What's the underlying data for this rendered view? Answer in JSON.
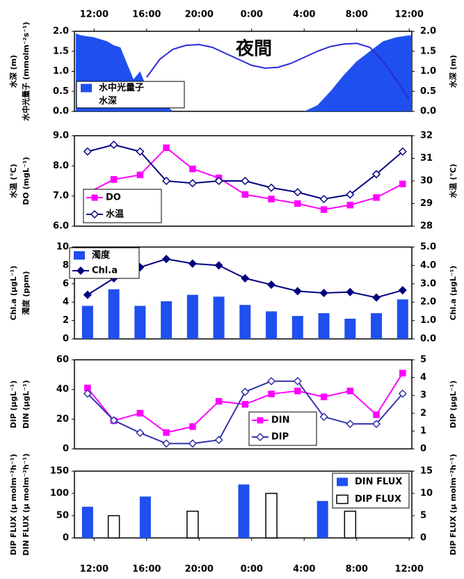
{
  "chart_data": [
    {
      "type": "line",
      "annotation": "夜間",
      "ylabels": [
        "水深 (m)",
        "水中光量子 (mmolm⁻²s⁻¹)"
      ],
      "y2label": "水深 (m)",
      "xlim": [
        10.5,
        36.2
      ],
      "xaxis_position": "top",
      "xticks": [
        {
          "value": 12,
          "label": "12:00"
        },
        {
          "value": 16,
          "label": "16:00"
        },
        {
          "value": 20,
          "label": "20:00"
        },
        {
          "value": 24,
          "label": "0:00"
        },
        {
          "value": 28,
          "label": "4:00"
        },
        {
          "value": 32,
          "label": "8:00"
        },
        {
          "value": 36,
          "label": "12:00"
        }
      ],
      "ylim": [
        0,
        2
      ],
      "yticks": [
        {
          "value": 0,
          "label": "0.0"
        },
        0.5,
        {
          "value": 1,
          "label": "1.0"
        },
        1.5,
        {
          "value": 2,
          "label": "2.0"
        }
      ],
      "y2lim": [
        0,
        2
      ],
      "y2ticks": [
        {
          "value": 0,
          "label": "0.0"
        },
        0.5,
        {
          "value": 1,
          "label": "1.0"
        },
        1.5,
        {
          "value": 2,
          "label": "2.0"
        }
      ],
      "series": [
        {
          "name": "水中光量子",
          "type": "area",
          "color": "#1f4fef",
          "x": [
            10.6,
            11,
            12,
            12.5,
            13,
            13.5,
            14,
            14.5,
            15,
            15.5,
            16,
            17,
            17.5,
            18,
            28,
            29,
            30,
            31,
            32,
            33,
            34,
            35,
            36,
            36.2
          ],
          "values": [
            1.95,
            1.9,
            1.85,
            1.8,
            1.75,
            1.65,
            1.6,
            1.2,
            0.8,
            1.0,
            0.6,
            0.3,
            0.15,
            0,
            0,
            0.15,
            0.5,
            0.9,
            1.25,
            1.5,
            1.75,
            1.85,
            1.9,
            1.9
          ]
        },
        {
          "name": "水深",
          "type": "line",
          "axis": "y2",
          "color": "#2a2adb",
          "marker": "none",
          "x": [
            16,
            17,
            18,
            19,
            20,
            21,
            22,
            23,
            24,
            25,
            26,
            27,
            28,
            29,
            30,
            31,
            32,
            33,
            34,
            35,
            36
          ],
          "values": [
            0.85,
            1.3,
            1.55,
            1.65,
            1.67,
            1.6,
            1.45,
            1.3,
            1.15,
            1.08,
            1.1,
            1.2,
            1.35,
            1.5,
            1.62,
            1.68,
            1.7,
            1.6,
            1.25,
            0.8,
            0.3
          ]
        }
      ]
    },
    {
      "type": "line",
      "ylabels": [
        "水温 (℃)",
        "DO (mgL⁻¹)"
      ],
      "y2label": "水温 (℃)",
      "xlim": [
        10.5,
        36.2
      ],
      "ylim": [
        6,
        9
      ],
      "yticks": [
        {
          "value": 6,
          "label": "6.0"
        },
        {
          "value": 7,
          "label": "7.0"
        },
        {
          "value": 8,
          "label": "8.0"
        },
        {
          "value": 9,
          "label": "9.0"
        }
      ],
      "y2lim": [
        28,
        32
      ],
      "y2ticks": [
        28,
        29,
        30,
        31,
        32
      ],
      "series": [
        {
          "name": "DO",
          "type": "line",
          "color": "#ff00ff",
          "marker": "square",
          "marker_filled": true,
          "x": [
            11.5,
            13.5,
            15.5,
            17.5,
            19.5,
            21.5,
            23.5,
            25.5,
            27.5,
            29.5,
            31.5,
            33.5,
            35.5
          ],
          "values": [
            7.1,
            7.55,
            7.7,
            8.6,
            7.9,
            7.6,
            7.05,
            6.9,
            6.75,
            6.55,
            6.7,
            6.95,
            7.4
          ]
        },
        {
          "name": "水温",
          "type": "line",
          "axis": "y2",
          "color": "#000080",
          "marker": "diamond",
          "marker_filled": false,
          "x": [
            11.5,
            13.5,
            15.5,
            17.5,
            19.5,
            21.5,
            23.5,
            25.5,
            27.5,
            29.5,
            31.5,
            33.5,
            35.5
          ],
          "values": [
            31.3,
            31.6,
            31.3,
            30.0,
            29.9,
            30.0,
            30.0,
            29.7,
            29.5,
            29.2,
            29.4,
            30.3,
            31.3
          ]
        }
      ]
    },
    {
      "type": "bar",
      "ylabels": [
        "Chl.a (μgL⁻¹)",
        "濁度 (ppm)"
      ],
      "y2label": "Chl.a (μgL⁻¹)",
      "xlim": [
        10.5,
        36.2
      ],
      "ylim": [
        0,
        10
      ],
      "yticks": [
        0,
        2,
        4,
        6,
        8,
        10
      ],
      "y2lim": [
        0,
        5
      ],
      "y2ticks": [
        {
          "value": 0,
          "label": "0.0"
        },
        {
          "value": 1,
          "label": "1.0"
        },
        {
          "value": 2,
          "label": "2.0"
        },
        {
          "value": 3,
          "label": "3.0"
        },
        {
          "value": 4,
          "label": "4.0"
        },
        {
          "value": 5,
          "label": "5.0"
        }
      ],
      "series": [
        {
          "name": "濁度",
          "type": "bar",
          "color": "#1f4fef",
          "x": [
            11.5,
            13.5,
            15.5,
            17.5,
            19.5,
            21.5,
            23.5,
            25.5,
            27.5,
            29.5,
            31.5,
            33.5,
            35.5
          ],
          "values": [
            3.6,
            5.4,
            3.6,
            4.1,
            4.8,
            4.6,
            3.7,
            3.0,
            2.5,
            2.8,
            2.2,
            2.8,
            4.3
          ]
        },
        {
          "name": "Chl.a",
          "type": "line",
          "axis": "y2",
          "color": "#000080",
          "marker": "diamond",
          "marker_filled": true,
          "x": [
            11.5,
            13.5,
            15.5,
            17.5,
            19.5,
            21.5,
            23.5,
            25.5,
            27.5,
            29.5,
            31.5,
            33.5,
            35.5
          ],
          "values": [
            2.4,
            3.3,
            3.9,
            4.35,
            4.1,
            4.0,
            3.3,
            2.95,
            2.6,
            2.5,
            2.55,
            2.25,
            2.65
          ]
        }
      ]
    },
    {
      "type": "line",
      "ylabels": [
        "DIP (μgL⁻¹)",
        "DIN (μgL⁻¹)"
      ],
      "y2label": "DIP (μgL⁻¹)",
      "xlim": [
        10.5,
        36.2
      ],
      "ylim": [
        0,
        60
      ],
      "yticks": [
        0,
        20,
        40,
        60
      ],
      "y2lim": [
        0,
        5
      ],
      "y2ticks": [
        0,
        1,
        2,
        3,
        4,
        5
      ],
      "series": [
        {
          "name": "DIN",
          "type": "line",
          "color": "#ff00ff",
          "marker": "square",
          "marker_filled": true,
          "x": [
            11.5,
            13.5,
            15.5,
            17.5,
            19.5,
            21.5,
            23.5,
            25.5,
            27.5,
            29.5,
            31.5,
            33.5,
            35.5
          ],
          "values": [
            41,
            19,
            24,
            11,
            15,
            32,
            30,
            37,
            39,
            35,
            39,
            23,
            51
          ]
        },
        {
          "name": "DIP",
          "type": "line",
          "axis": "y2",
          "color": "#3333aa",
          "marker": "diamond",
          "marker_filled": false,
          "x": [
            11.5,
            13.5,
            15.5,
            17.5,
            19.5,
            21.5,
            23.5,
            25.5,
            27.5,
            29.5,
            31.5,
            33.5,
            35.5
          ],
          "values": [
            3.1,
            1.6,
            0.9,
            0.3,
            0.3,
            0.5,
            3.2,
            3.8,
            3.8,
            1.8,
            1.4,
            1.4,
            3.1
          ]
        }
      ]
    },
    {
      "type": "bar",
      "ylabels": [
        "DIP FLUX (μ molm⁻²h⁻¹)",
        "DIN FLUX (μ molm⁻²h⁻¹)"
      ],
      "y2label": "DIP FLUX (μ molm⁻²h⁻¹)",
      "xlim": [
        10.5,
        36.2
      ],
      "xaxis_position": "bottom",
      "xticks": [
        {
          "value": 12,
          "label": "12:00"
        },
        {
          "value": 16,
          "label": "16:00"
        },
        {
          "value": 20,
          "label": "20:00"
        },
        {
          "value": 24,
          "label": "0:00"
        },
        {
          "value": 28,
          "label": "4:00"
        },
        {
          "value": 32,
          "label": "8:00"
        },
        {
          "value": 36,
          "label": "12:00"
        }
      ],
      "ylim": [
        0,
        150
      ],
      "yticks": [
        0,
        50,
        100,
        150
      ],
      "y2lim": [
        0,
        15
      ],
      "y2ticks": [
        0,
        5,
        10,
        15
      ],
      "series": [
        {
          "name": "DIN FLUX",
          "type": "bar",
          "color": "#1f4fef",
          "x": [
            11.5,
            15.9,
            23.4,
            29.4
          ],
          "values": [
            70,
            93,
            120,
            83
          ]
        },
        {
          "name": "DIP FLUX",
          "type": "bar",
          "axis": "y2",
          "color": "#ffffff",
          "x": [
            13.5,
            19.5,
            25.5,
            31.5
          ],
          "values": [
            5,
            6,
            10,
            6
          ]
        }
      ]
    }
  ]
}
